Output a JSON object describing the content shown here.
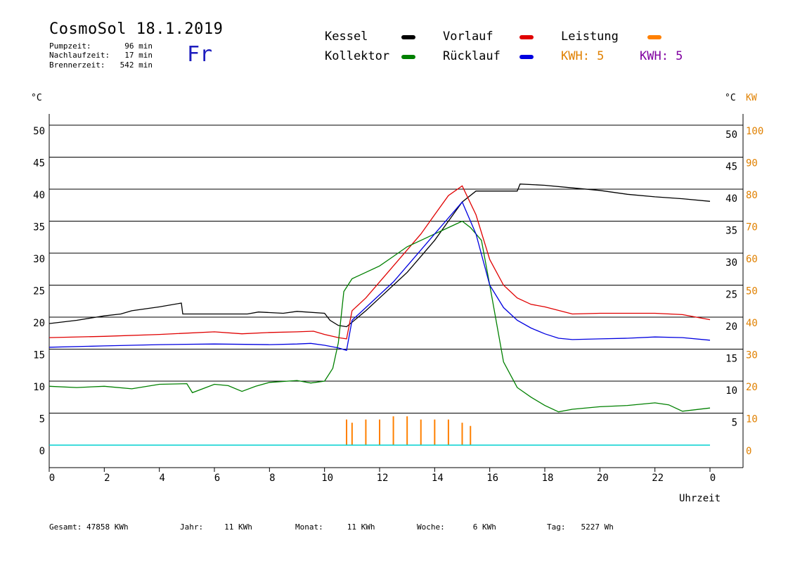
{
  "header": {
    "title": "CosmoSol 18.1.2019",
    "day": "Fr",
    "stats": [
      {
        "label": "Pumpzeit:",
        "value": "96 min"
      },
      {
        "label": "Nachlaufzeit:",
        "value": "17 min"
      },
      {
        "label": "Brennerzeit:",
        "value": "542 min"
      }
    ]
  },
  "legend": {
    "kessel": {
      "label": "Kessel",
      "color": "#000000"
    },
    "vorlauf": {
      "label": "Vorlauf",
      "color": "#e00000"
    },
    "leistung": {
      "label": "Leistung",
      "color": "#ff8000"
    },
    "kollektor": {
      "label": "Kollektor",
      "color": "#008000"
    },
    "ruecklauf": {
      "label": "Rücklauf",
      "color": "#0000e0"
    },
    "kwh_orange": "KWH: 5",
    "kwh_purple": "KWH: 5"
  },
  "axes": {
    "left_unit": "°C",
    "right_unit_c": "°C",
    "right_unit_kw": "KW",
    "x_label": "Uhrzeit"
  },
  "footer": [
    {
      "label": "Gesamt:",
      "value": "47858 KWh"
    },
    {
      "label": "Jahr:",
      "value": "11 KWh"
    },
    {
      "label": "Monat:",
      "value": "11 KWh"
    },
    {
      "label": "Woche:",
      "value": "6 KWh"
    },
    {
      "label": "Tag:",
      "value": "5227 Wh"
    }
  ],
  "chart_data": {
    "type": "line",
    "title": "CosmoSol 18.1.2019",
    "xlabel": "Uhrzeit",
    "ylabel": "°C",
    "y2label": "KW",
    "xlim": [
      0,
      24
    ],
    "ylim": [
      0,
      50
    ],
    "y2lim": [
      0,
      100
    ],
    "x_ticks": [
      "0",
      "2",
      "4",
      "6",
      "8",
      "10",
      "12",
      "14",
      "16",
      "18",
      "20",
      "22",
      "0"
    ],
    "y_ticks": [
      0,
      5,
      10,
      15,
      20,
      25,
      30,
      35,
      40,
      45,
      50
    ],
    "y_right_ticks": [
      5,
      10,
      15,
      20,
      25,
      30,
      35,
      40,
      45,
      50
    ],
    "y2_ticks": [
      0,
      10,
      20,
      30,
      40,
      50,
      60,
      70,
      80,
      90,
      100
    ],
    "grid": true,
    "legend_position": "top",
    "series": [
      {
        "name": "Kessel",
        "color": "#000000",
        "x": [
          0,
          1,
          2,
          2.6,
          3,
          4,
          4.8,
          4.85,
          6,
          7.2,
          7.6,
          8.5,
          9,
          10,
          10.2,
          10.5,
          10.8,
          11,
          11.5,
          12,
          12.5,
          13,
          13.5,
          14,
          14.5,
          15,
          15.5,
          16,
          17,
          17.1,
          18,
          19,
          20,
          21,
          22,
          23,
          24
        ],
        "values": [
          19,
          19.5,
          20.2,
          20.5,
          21,
          21.6,
          22.2,
          20.5,
          20.5,
          20.5,
          20.8,
          20.6,
          20.9,
          20.6,
          19.5,
          18.7,
          18.5,
          19.2,
          21,
          23,
          25,
          27,
          29.5,
          32,
          35,
          38,
          39.7,
          39.7,
          39.7,
          40.8,
          40.6,
          40.2,
          39.8,
          39.2,
          38.8,
          38.5,
          38.1
        ]
      },
      {
        "name": "Vorlauf",
        "color": "#e00000",
        "x": [
          0,
          2,
          4,
          6,
          7,
          8,
          9,
          9.6,
          10,
          10.5,
          10.8,
          11,
          11.5,
          12,
          12.5,
          13,
          13.5,
          14,
          14.5,
          15,
          15.5,
          16,
          16.5,
          17,
          17.5,
          18,
          19,
          20,
          21,
          22,
          23,
          24
        ],
        "values": [
          16.8,
          17,
          17.3,
          17.7,
          17.4,
          17.6,
          17.7,
          17.8,
          17.3,
          16.8,
          16.6,
          21,
          23,
          25.5,
          28,
          30.5,
          33,
          36,
          39,
          40.5,
          36,
          29,
          25,
          23,
          22,
          21.6,
          20.5,
          20.6,
          20.6,
          20.6,
          20.4,
          19.6
        ]
      },
      {
        "name": "Kollektor",
        "color": "#008000",
        "x": [
          0,
          1,
          2,
          3,
          4,
          5,
          5.2,
          6,
          6.5,
          7,
          7.5,
          8,
          9,
          9.5,
          10,
          10.3,
          10.5,
          10.7,
          11,
          11.5,
          12,
          12.5,
          13,
          13.5,
          14,
          14.5,
          15,
          15.3,
          15.7,
          16,
          16.5,
          17,
          17.5,
          18,
          18.5,
          19,
          20,
          21,
          22,
          22.5,
          23,
          24
        ],
        "values": [
          9.2,
          9,
          9.2,
          8.8,
          9.5,
          9.6,
          8.2,
          9.5,
          9.3,
          8.4,
          9.2,
          9.8,
          10.1,
          9.7,
          10,
          12,
          16,
          24,
          26,
          27,
          28,
          29.5,
          31,
          32,
          33,
          34,
          35,
          34,
          32,
          25,
          13,
          9,
          7.5,
          6.2,
          5.2,
          5.6,
          6,
          6.2,
          6.6,
          6.3,
          5.3,
          5.8
        ]
      },
      {
        "name": "Rücklauf",
        "color": "#0000e0",
        "x": [
          0,
          2,
          4,
          6,
          8,
          9,
          9.5,
          10,
          10.5,
          10.8,
          11,
          11.5,
          12,
          12.5,
          13,
          13.5,
          14,
          14.5,
          15,
          15.5,
          16,
          16.5,
          17,
          17.5,
          18,
          18.5,
          19,
          20,
          21,
          22,
          23,
          24
        ],
        "values": [
          15.3,
          15.5,
          15.7,
          15.8,
          15.7,
          15.8,
          15.9,
          15.6,
          15.2,
          14.8,
          19.5,
          21.5,
          23.5,
          25.5,
          28,
          30.5,
          33,
          35.5,
          38,
          33,
          25,
          21.5,
          19.5,
          18.3,
          17.4,
          16.7,
          16.5,
          16.6,
          16.7,
          16.9,
          16.8,
          16.4
        ]
      },
      {
        "name": "Leistung",
        "color": "#ff8000",
        "axis": "y2",
        "x": [
          10.8,
          11,
          11.5,
          12,
          12.5,
          13,
          13.5,
          14,
          14.5,
          15,
          15.3
        ],
        "values": [
          8,
          7,
          8,
          8,
          9,
          9,
          8,
          8,
          8,
          7,
          6
        ]
      }
    ]
  }
}
